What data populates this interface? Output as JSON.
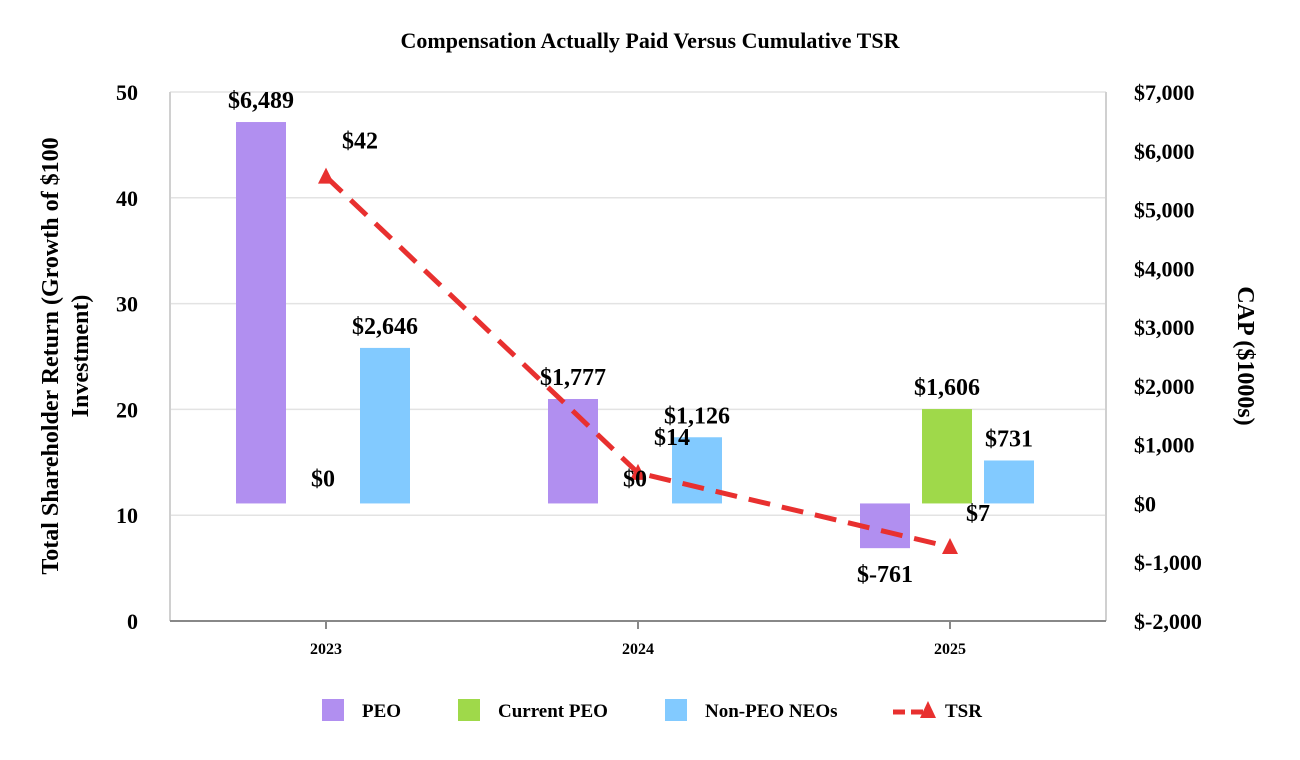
{
  "chart_data": {
    "type": "bar",
    "title": "Compensation Actually Paid Versus Cumulative TSR",
    "ylabel_left": "Total Shareholder Return (Growth of $100 Investment)",
    "ylabel_left_lines": [
      "Total Shareholder Return (Growth of $100",
      "Investment)"
    ],
    "ylabel_right": "CAP ($1000s)",
    "categories": [
      "2023",
      "2024",
      "2025"
    ],
    "left_axis": {
      "range": [
        0,
        50
      ],
      "ticks": [
        "0",
        "10",
        "20",
        "30",
        "40",
        "50"
      ]
    },
    "right_axis": {
      "range": [
        -2000,
        7000
      ],
      "ticks": [
        "$-2,000",
        "$-1,000",
        "$0",
        "$1,000",
        "$2,000",
        "$3,000",
        "$4,000",
        "$5,000",
        "$6,000",
        "$7,000"
      ]
    },
    "grid": true,
    "legend_position": "bottom",
    "series": [
      {
        "name": "PEO",
        "kind": "bar",
        "axis": "right",
        "color": "#b18ff0",
        "values": [
          6489,
          1777,
          -761
        ],
        "labels": [
          "$6,489",
          "$1,777",
          "$-761"
        ]
      },
      {
        "name": "Current PEO",
        "kind": "bar",
        "axis": "right",
        "color": "#9fd94a",
        "values": [
          0,
          0,
          1606
        ],
        "labels": [
          "$0",
          "$0",
          "$1,606"
        ]
      },
      {
        "name": "Non-PEO NEOs",
        "kind": "bar",
        "axis": "right",
        "color": "#82caff",
        "values": [
          2646,
          1126,
          731
        ],
        "labels": [
          "$2,646",
          "$1,126",
          "$731"
        ]
      },
      {
        "name": "TSR",
        "kind": "line",
        "axis": "left",
        "color": "#e8302f",
        "values": [
          42,
          14,
          7
        ],
        "labels": [
          "$42",
          "$14",
          "$7"
        ]
      }
    ]
  }
}
